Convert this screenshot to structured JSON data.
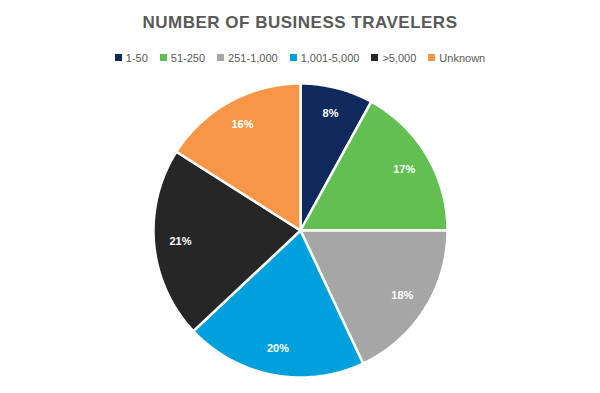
{
  "chart_data": {
    "type": "pie",
    "title": "NUMBER OF BUSINESS TRAVELERS",
    "categories": [
      "1-50",
      "51-250",
      "251-1,000",
      "1,001-5,000",
      ">5,000",
      "Unknown"
    ],
    "values": [
      8,
      17,
      18,
      20,
      21,
      16
    ],
    "value_labels": [
      "8%",
      "17%",
      "18%",
      "20%",
      "21%",
      "16%"
    ],
    "colors": [
      "#0e2a5c",
      "#62c053",
      "#a6a6a6",
      "#00a0dc",
      "#262626",
      "#f79646"
    ],
    "data_labels": true,
    "legend": "top"
  }
}
